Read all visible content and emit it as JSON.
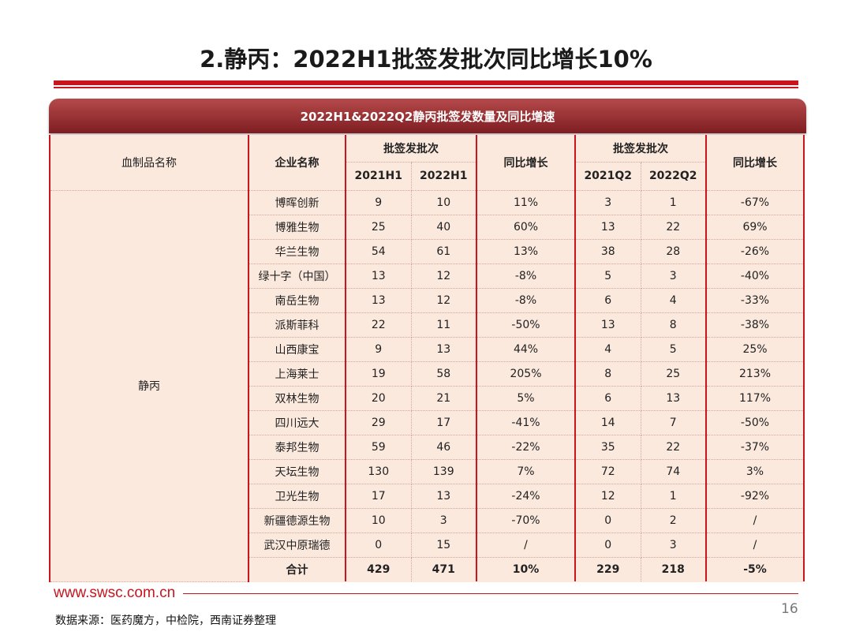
{
  "title": "2.静丙：2022H1批签发批次同比增长10%",
  "table_title": "2022H1&2022Q2静丙批签发数量及同比增速",
  "headers": {
    "category": "血制品名称",
    "company": "企业名称",
    "batches_h": "批签发批次",
    "h1_2021": "2021H1",
    "h1_2022": "2022H1",
    "yoy_h": "同比增长",
    "batches_q": "批签发批次",
    "q2_2021": "2021Q2",
    "q2_2022": "2022Q2",
    "yoy_q": "同比增长"
  },
  "category": "静丙",
  "rows": [
    {
      "company": "博晖创新",
      "h1_2021": "9",
      "h1_2022": "10",
      "yoy_h": "11%",
      "q2_2021": "3",
      "q2_2022": "1",
      "yoy_q": "-67%"
    },
    {
      "company": "博雅生物",
      "h1_2021": "25",
      "h1_2022": "40",
      "yoy_h": "60%",
      "q2_2021": "13",
      "q2_2022": "22",
      "yoy_q": "69%"
    },
    {
      "company": "华兰生物",
      "h1_2021": "54",
      "h1_2022": "61",
      "yoy_h": "13%",
      "q2_2021": "38",
      "q2_2022": "28",
      "yoy_q": "-26%"
    },
    {
      "company": "绿十字（中国）",
      "h1_2021": "13",
      "h1_2022": "12",
      "yoy_h": "-8%",
      "q2_2021": "5",
      "q2_2022": "3",
      "yoy_q": "-40%"
    },
    {
      "company": "南岳生物",
      "h1_2021": "13",
      "h1_2022": "12",
      "yoy_h": "-8%",
      "q2_2021": "6",
      "q2_2022": "4",
      "yoy_q": "-33%"
    },
    {
      "company": "派斯菲科",
      "h1_2021": "22",
      "h1_2022": "11",
      "yoy_h": "-50%",
      "q2_2021": "13",
      "q2_2022": "8",
      "yoy_q": "-38%"
    },
    {
      "company": "山西康宝",
      "h1_2021": "9",
      "h1_2022": "13",
      "yoy_h": "44%",
      "q2_2021": "4",
      "q2_2022": "5",
      "yoy_q": "25%"
    },
    {
      "company": "上海莱士",
      "h1_2021": "19",
      "h1_2022": "58",
      "yoy_h": "205%",
      "q2_2021": "8",
      "q2_2022": "25",
      "yoy_q": "213%"
    },
    {
      "company": "双林生物",
      "h1_2021": "20",
      "h1_2022": "21",
      "yoy_h": "5%",
      "q2_2021": "6",
      "q2_2022": "13",
      "yoy_q": "117%"
    },
    {
      "company": "四川远大",
      "h1_2021": "29",
      "h1_2022": "17",
      "yoy_h": "-41%",
      "q2_2021": "14",
      "q2_2022": "7",
      "yoy_q": "-50%"
    },
    {
      "company": "泰邦生物",
      "h1_2021": "59",
      "h1_2022": "46",
      "yoy_h": "-22%",
      "q2_2021": "35",
      "q2_2022": "22",
      "yoy_q": "-37%"
    },
    {
      "company": "天坛生物",
      "h1_2021": "130",
      "h1_2022": "139",
      "yoy_h": "7%",
      "q2_2021": "72",
      "q2_2022": "74",
      "yoy_q": "3%"
    },
    {
      "company": "卫光生物",
      "h1_2021": "17",
      "h1_2022": "13",
      "yoy_h": "-24%",
      "q2_2021": "12",
      "q2_2022": "1",
      "yoy_q": "-92%"
    },
    {
      "company": "新疆德源生物",
      "h1_2021": "10",
      "h1_2022": "3",
      "yoy_h": "-70%",
      "q2_2021": "0",
      "q2_2022": "2",
      "yoy_q": "/"
    },
    {
      "company": "武汉中原瑞德",
      "h1_2021": "0",
      "h1_2022": "15",
      "yoy_h": "/",
      "q2_2021": "0",
      "q2_2022": "3",
      "yoy_q": "/"
    }
  ],
  "total": {
    "company": "合计",
    "h1_2021": "429",
    "h1_2022": "471",
    "yoy_h": "10%",
    "q2_2021": "229",
    "q2_2022": "218",
    "yoy_q": "-5%"
  },
  "footer": {
    "url": "www.swsc.com.cn",
    "page_number": "16",
    "source": "数据来源：医药魔方，中检院，西南证券整理"
  },
  "colors": {
    "accent": "#c9151e",
    "banner": "#8b2a2f",
    "table_bg": "#fbe9de"
  }
}
